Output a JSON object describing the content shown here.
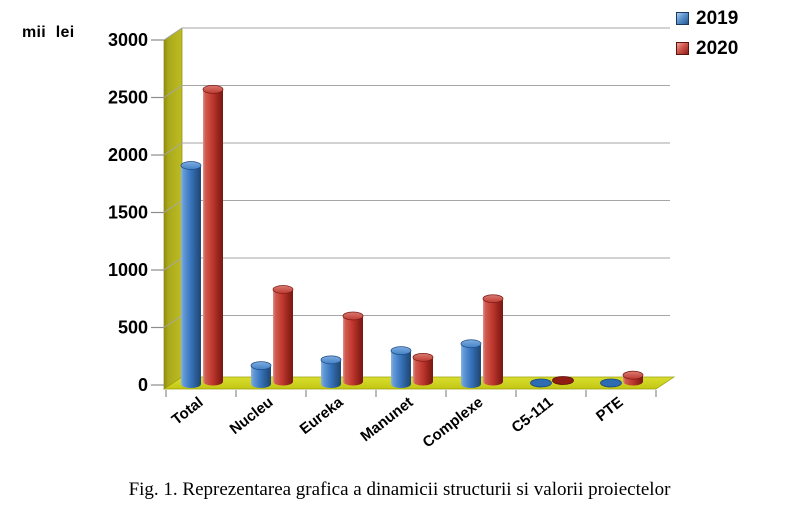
{
  "axis_unit_label": "mii lei",
  "caption": "Fig. 1. Reprezentarea grafica a dinamicii structurii si valorii proiectelor",
  "chart_data": {
    "type": "bar",
    "subtype": "3d-cylinder",
    "title": "",
    "xlabel": "",
    "ylabel": "mii lei",
    "categories": [
      "Total",
      "Nucleu",
      "Eureka",
      "Manunet",
      "Complexe",
      "C5-111",
      "PTE"
    ],
    "series": [
      {
        "name": "2019",
        "palette_key": "blue",
        "values": [
          1900,
          160,
          210,
          290,
          350,
          0,
          0
        ]
      },
      {
        "name": "2020",
        "palette_key": "red",
        "values": [
          2540,
          800,
          570,
          210,
          720,
          0,
          55
        ]
      }
    ],
    "ylim": [
      0,
      3000
    ],
    "yticks": [
      0,
      500,
      1000,
      1500,
      2000,
      2500,
      3000
    ],
    "grid": true,
    "legend_position": "top-right",
    "colors": {
      "series_2019": "#3a78c2",
      "series_2020": "#c23a30",
      "wall": "#b3b21d",
      "floor": "#c9cd17",
      "gridline": "#a6a6a6",
      "tick": "#8c8c8c"
    },
    "palette": {
      "blue": {
        "body": [
          "#8ab5e5",
          "#659ad6",
          "#3a78c2",
          "#265589",
          "#1d4674"
        ],
        "cap": [
          "#7fade0",
          "#4381c6"
        ],
        "cap_stroke": "#1e4c85",
        "flat": "#2d6cb3",
        "flat_stroke": "#16457a",
        "legend": [
          "#a9cdef",
          "#5b92cc",
          "#27588f",
          "#1b3a5e"
        ]
      },
      "red": {
        "body": [
          "#de938c",
          "#d05a50",
          "#c23a30",
          "#8f2019",
          "#771812"
        ],
        "cap": [
          "#d87c74",
          "#bf3a30"
        ],
        "cap_stroke": "#7f1b15",
        "flat": "#8f1d14",
        "flat_stroke": "#5c0e08",
        "legend": [
          "#eda59e",
          "#cf564c",
          "#8c1f19",
          "#5e120e"
        ]
      }
    }
  }
}
